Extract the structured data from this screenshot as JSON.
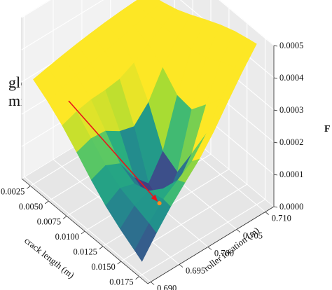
{
  "chart_data": {
    "type": "surface",
    "colormap": "viridis",
    "x": {
      "label": "crack length (m)",
      "range": [
        0.0013,
        0.0187
      ],
      "ticks": [
        0.0025,
        0.005,
        0.0075,
        0.01,
        0.0125,
        0.015,
        0.0175
      ],
      "tick_labels": [
        "0.0025",
        "0.0050",
        "0.0075",
        "0.0100",
        "0.0125",
        "0.0150",
        "0.0175"
      ]
    },
    "y": {
      "label": "roller location (m)",
      "range": [
        0.6895,
        0.7115
      ],
      "ticks": [
        0.69,
        0.695,
        0.7,
        0.705,
        0.71
      ],
      "tick_labels": [
        "0.690",
        "0.695",
        "0.700",
        "0.705",
        "0.710"
      ]
    },
    "z": {
      "label": "F",
      "range": [
        0,
        0.0005
      ],
      "ticks": [
        0,
        0.0001,
        0.0002,
        0.0003,
        0.0004,
        0.0005
      ],
      "tick_labels": [
        "0.0000",
        "0.0001",
        "0.0002",
        "0.0003",
        "0.0004",
        "0.0005"
      ]
    },
    "surface": {
      "x_values": [
        0.0025,
        0.0045,
        0.0065,
        0.0085,
        0.0105,
        0.0125,
        0.0145,
        0.0165,
        0.0175
      ],
      "y_values": [
        0.69,
        0.6925,
        0.695,
        0.6975,
        0.7,
        0.7025,
        0.705,
        0.7075,
        0.71
      ],
      "z_corners": {
        "x_0.0025_y_0.690": 0.00032,
        "x_0.0025_y_0.710": 0.00037,
        "x_0.0175_y_0.690": 3e-05,
        "x_0.0175_y_0.710": 0.0005
      },
      "min_value": 5e-06
    },
    "global_minimum": {
      "x": 0.012,
      "y": 0.7,
      "z": 1e-05,
      "color": "#ff8c1a"
    },
    "annotation": {
      "lines": [
        "global",
        "minimum"
      ],
      "arrow_color": "#e8141a"
    },
    "pane_color": "#f2f2f2",
    "grid": true
  }
}
